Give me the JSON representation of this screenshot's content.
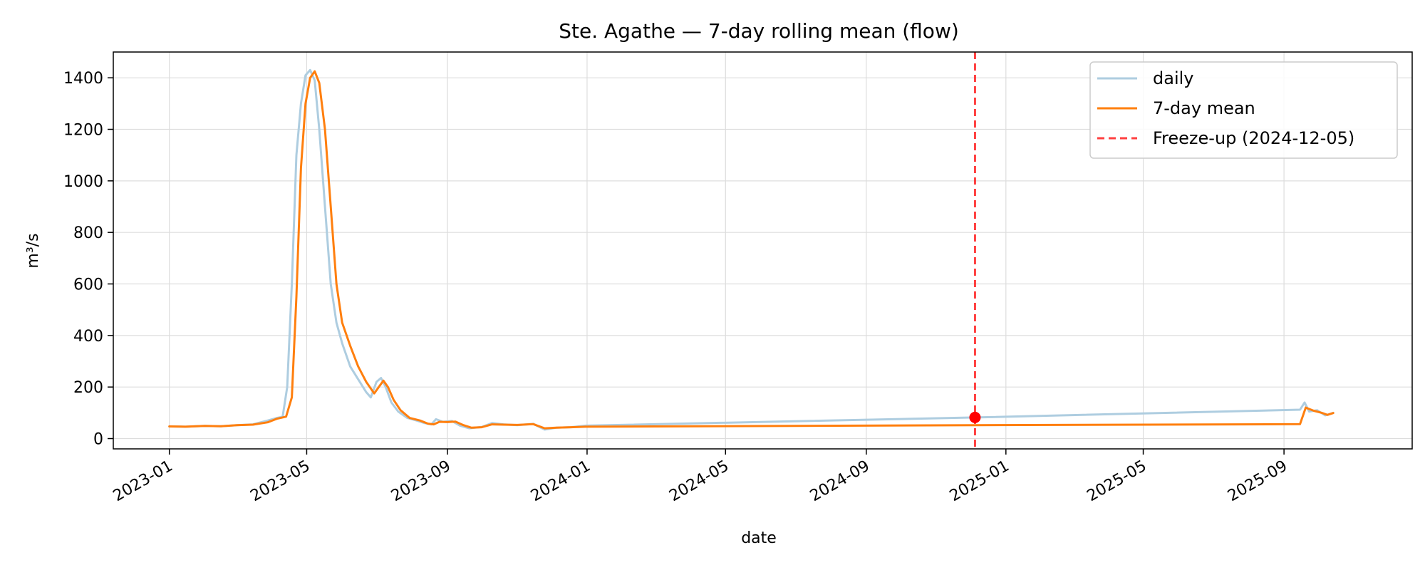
{
  "chart_data": {
    "type": "line",
    "title": "Ste. Agathe — 7-day rolling mean (flow)",
    "xlabel": "date",
    "ylabel": "m³/s",
    "xlim": [
      "2022-11-13",
      "2025-12-22"
    ],
    "ylim": [
      -40,
      1500
    ],
    "grid": true,
    "legend_placement": "top-right",
    "x_ticks": [
      "2023-01",
      "2023-05",
      "2023-09",
      "2024-01",
      "2024-05",
      "2024-09",
      "2025-01",
      "2025-05",
      "2025-09"
    ],
    "y_ticks": [
      0,
      200,
      400,
      600,
      800,
      1000,
      1200,
      1400
    ],
    "series": [
      {
        "name": "daily",
        "color": "#aecde0",
        "points": [
          [
            "2023-01-01",
            47
          ],
          [
            "2023-01-15",
            46
          ],
          [
            "2023-02-01",
            49
          ],
          [
            "2023-02-15",
            48
          ],
          [
            "2023-03-01",
            52
          ],
          [
            "2023-03-15",
            55
          ],
          [
            "2023-03-28",
            70
          ],
          [
            "2023-04-05",
            80
          ],
          [
            "2023-04-10",
            85
          ],
          [
            "2023-04-14",
            200
          ],
          [
            "2023-04-18",
            600
          ],
          [
            "2023-04-22",
            1100
          ],
          [
            "2023-04-26",
            1300
          ],
          [
            "2023-04-30",
            1410
          ],
          [
            "2023-05-04",
            1430
          ],
          [
            "2023-05-08",
            1390
          ],
          [
            "2023-05-12",
            1200
          ],
          [
            "2023-05-17",
            900
          ],
          [
            "2023-05-22",
            600
          ],
          [
            "2023-05-27",
            450
          ],
          [
            "2023-06-01",
            370
          ],
          [
            "2023-06-08",
            280
          ],
          [
            "2023-06-15",
            230
          ],
          [
            "2023-06-22",
            180
          ],
          [
            "2023-06-26",
            160
          ],
          [
            "2023-07-01",
            220
          ],
          [
            "2023-07-05",
            235
          ],
          [
            "2023-07-09",
            200
          ],
          [
            "2023-07-14",
            140
          ],
          [
            "2023-07-20",
            105
          ],
          [
            "2023-07-28",
            80
          ],
          [
            "2023-08-05",
            70
          ],
          [
            "2023-08-12",
            60
          ],
          [
            "2023-08-18",
            55
          ],
          [
            "2023-08-22",
            75
          ],
          [
            "2023-08-28",
            65
          ],
          [
            "2023-09-05",
            68
          ],
          [
            "2023-09-12",
            50
          ],
          [
            "2023-09-20",
            40
          ],
          [
            "2023-10-01",
            45
          ],
          [
            "2023-10-10",
            60
          ],
          [
            "2023-10-20",
            55
          ],
          [
            "2023-11-01",
            52
          ],
          [
            "2023-11-15",
            57
          ],
          [
            "2023-11-25",
            35
          ],
          [
            "2023-12-05",
            42
          ],
          [
            "2023-12-18",
            44
          ],
          [
            "2023-12-31",
            50
          ],
          [
            "2024-12-05",
            82
          ],
          [
            "2025-09-15",
            112
          ],
          [
            "2025-09-19",
            140
          ],
          [
            "2025-09-23",
            105
          ],
          [
            "2025-09-30",
            110
          ],
          [
            "2025-10-07",
            90
          ],
          [
            "2025-10-14",
            100
          ]
        ]
      },
      {
        "name": "7-day mean",
        "color": "#ff7f0e",
        "points": [
          [
            "2023-01-01",
            47
          ],
          [
            "2023-01-15",
            46
          ],
          [
            "2023-02-01",
            49
          ],
          [
            "2023-02-15",
            48
          ],
          [
            "2023-03-01",
            52
          ],
          [
            "2023-03-15",
            54
          ],
          [
            "2023-03-28",
            63
          ],
          [
            "2023-04-05",
            77
          ],
          [
            "2023-04-13",
            85
          ],
          [
            "2023-04-18",
            160
          ],
          [
            "2023-04-22",
            550
          ],
          [
            "2023-04-26",
            1050
          ],
          [
            "2023-04-30",
            1300
          ],
          [
            "2023-05-04",
            1400
          ],
          [
            "2023-05-08",
            1425
          ],
          [
            "2023-05-12",
            1380
          ],
          [
            "2023-05-17",
            1200
          ],
          [
            "2023-05-22",
            900
          ],
          [
            "2023-05-27",
            600
          ],
          [
            "2023-06-01",
            450
          ],
          [
            "2023-06-08",
            360
          ],
          [
            "2023-06-15",
            280
          ],
          [
            "2023-06-22",
            220
          ],
          [
            "2023-06-29",
            175
          ],
          [
            "2023-07-03",
            200
          ],
          [
            "2023-07-07",
            225
          ],
          [
            "2023-07-11",
            200
          ],
          [
            "2023-07-16",
            150
          ],
          [
            "2023-07-22",
            110
          ],
          [
            "2023-07-30",
            80
          ],
          [
            "2023-08-08",
            70
          ],
          [
            "2023-08-15",
            58
          ],
          [
            "2023-08-20",
            55
          ],
          [
            "2023-08-25",
            65
          ],
          [
            "2023-09-01",
            64
          ],
          [
            "2023-09-08",
            66
          ],
          [
            "2023-09-15",
            52
          ],
          [
            "2023-09-22",
            42
          ],
          [
            "2023-10-01",
            44
          ],
          [
            "2023-10-10",
            55
          ],
          [
            "2023-10-20",
            54
          ],
          [
            "2023-11-01",
            53
          ],
          [
            "2023-11-15",
            56
          ],
          [
            "2023-11-25",
            40
          ],
          [
            "2023-12-05",
            42
          ],
          [
            "2023-12-18",
            44
          ],
          [
            "2023-12-31",
            46
          ],
          [
            "2024-12-05",
            52
          ],
          [
            "2025-09-15",
            56
          ],
          [
            "2025-09-20",
            120
          ],
          [
            "2025-09-27",
            108
          ],
          [
            "2025-10-04",
            100
          ],
          [
            "2025-10-09",
            92
          ],
          [
            "2025-10-14",
            99
          ]
        ]
      }
    ],
    "vline": {
      "name": "Freeze-up (2024-12-05)",
      "x": "2024-12-05",
      "color": "#ff0000",
      "style": "dashed"
    },
    "marker": {
      "x": "2024-12-05",
      "y": 82,
      "color": "#ff0000"
    }
  }
}
